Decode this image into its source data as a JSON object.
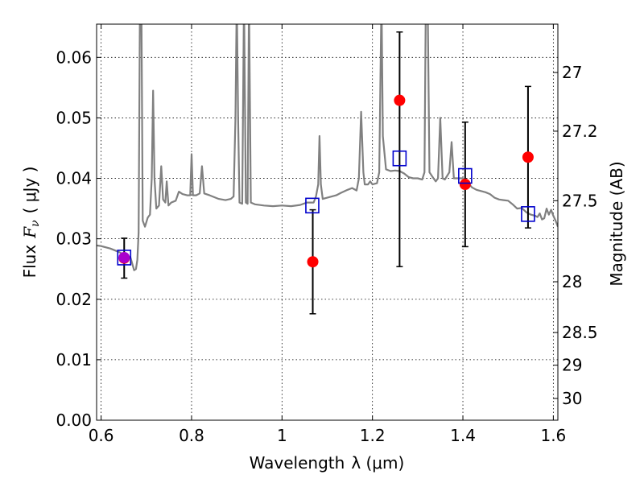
{
  "chart_data": {
    "type": "scatter",
    "xlabel": "Wavelength",
    "xlabel_symbol": "λ (μm)",
    "ylabel": "Flux",
    "ylabel_symbol": "F",
    "ylabel_subscript": "ν",
    "ylabel_unit": "( μJy )",
    "y2label": "Magnitude (AB)",
    "xlim": [
      0.59,
      1.61
    ],
    "ylim": [
      0.0,
      0.0655
    ],
    "grid": true,
    "x_ticks": [
      0.6,
      0.8,
      1.0,
      1.2,
      1.4,
      1.6
    ],
    "x_tick_labels": [
      "0.6",
      "0.8",
      "1",
      "1.2",
      "1.4",
      "1.6"
    ],
    "y_ticks": [
      0.0,
      0.01,
      0.02,
      0.03,
      0.04,
      0.05,
      0.06
    ],
    "y_tick_labels": [
      "0.00",
      "0.01",
      "0.02",
      "0.03",
      "0.04",
      "0.05",
      "0.06"
    ],
    "y2_ticks": [
      {
        "label": "27",
        "flux": 0.0575
      },
      {
        "label": "27.2",
        "flux": 0.0478
      },
      {
        "label": "27.5",
        "flux": 0.0363
      },
      {
        "label": "28",
        "flux": 0.0229
      },
      {
        "label": "28.5",
        "flux": 0.0145
      },
      {
        "label": "29",
        "flux": 0.0091
      },
      {
        "label": "30",
        "flux": 0.0036
      }
    ],
    "observed": {
      "color": "#ff0000",
      "points": [
        {
          "x": 0.651,
          "y": 0.0268,
          "yerr_lo": 0.0033,
          "yerr_hi": 0.0033
        },
        {
          "x": 1.068,
          "y": 0.0262,
          "yerr_lo": 0.0086,
          "yerr_hi": 0.0086
        },
        {
          "x": 1.26,
          "y": 0.0529,
          "yerr_lo": 0.0275,
          "yerr_hi": 0.0113
        },
        {
          "x": 1.405,
          "y": 0.039,
          "yerr_lo": 0.0103,
          "yerr_hi": 0.0103
        },
        {
          "x": 1.544,
          "y": 0.0435,
          "yerr_lo": 0.0117,
          "yerr_hi": 0.0117
        }
      ]
    },
    "model_photometry": {
      "color": "#0000cc",
      "points": [
        {
          "x": 0.651,
          "y": 0.0269
        },
        {
          "x": 1.067,
          "y": 0.0355
        },
        {
          "x": 1.26,
          "y": 0.0433
        },
        {
          "x": 1.405,
          "y": 0.0404
        },
        {
          "x": 1.544,
          "y": 0.0341
        }
      ]
    },
    "overlap_color": "#aa00cc",
    "model_spectrum": {
      "color": "#808080",
      "points": [
        [
          0.59,
          0.0289
        ],
        [
          0.6,
          0.0288
        ],
        [
          0.62,
          0.0284
        ],
        [
          0.64,
          0.0278
        ],
        [
          0.65,
          0.0274
        ],
        [
          0.655,
          0.0275
        ],
        [
          0.66,
          0.0271
        ],
        [
          0.665,
          0.0269
        ],
        [
          0.67,
          0.0256
        ],
        [
          0.673,
          0.0248
        ],
        [
          0.677,
          0.025
        ],
        [
          0.68,
          0.0265
        ],
        [
          0.683,
          0.031
        ],
        [
          0.686,
          0.07
        ],
        [
          0.689,
          0.07
        ],
        [
          0.692,
          0.033
        ],
        [
          0.697,
          0.032
        ],
        [
          0.703,
          0.0335
        ],
        [
          0.708,
          0.034
        ],
        [
          0.712,
          0.04
        ],
        [
          0.715,
          0.0545
        ],
        [
          0.718,
          0.04
        ],
        [
          0.722,
          0.035
        ],
        [
          0.728,
          0.0355
        ],
        [
          0.733,
          0.042
        ],
        [
          0.737,
          0.0365
        ],
        [
          0.742,
          0.036
        ],
        [
          0.745,
          0.0395
        ],
        [
          0.749,
          0.0355
        ],
        [
          0.755,
          0.036
        ],
        [
          0.765,
          0.0363
        ],
        [
          0.772,
          0.0378
        ],
        [
          0.78,
          0.0374
        ],
        [
          0.79,
          0.0372
        ],
        [
          0.797,
          0.0372
        ],
        [
          0.8,
          0.044
        ],
        [
          0.803,
          0.0372
        ],
        [
          0.81,
          0.0372
        ],
        [
          0.818,
          0.0375
        ],
        [
          0.823,
          0.042
        ],
        [
          0.828,
          0.0375
        ],
        [
          0.84,
          0.0372
        ],
        [
          0.86,
          0.0366
        ],
        [
          0.875,
          0.0364
        ],
        [
          0.887,
          0.0366
        ],
        [
          0.893,
          0.037
        ],
        [
          0.897,
          0.05
        ],
        [
          0.9,
          0.07
        ],
        [
          0.903,
          0.05
        ],
        [
          0.906,
          0.036
        ],
        [
          0.912,
          0.0358
        ],
        [
          0.916,
          0.07
        ],
        [
          0.92,
          0.036
        ],
        [
          0.924,
          0.0358
        ],
        [
          0.927,
          0.07
        ],
        [
          0.931,
          0.036
        ],
        [
          0.94,
          0.0357
        ],
        [
          0.96,
          0.0355
        ],
        [
          0.98,
          0.0354
        ],
        [
          1.0,
          0.0355
        ],
        [
          1.02,
          0.0354
        ],
        [
          1.04,
          0.0356
        ],
        [
          1.055,
          0.036
        ],
        [
          1.07,
          0.036
        ],
        [
          1.075,
          0.037
        ],
        [
          1.08,
          0.039
        ],
        [
          1.083,
          0.047
        ],
        [
          1.086,
          0.039
        ],
        [
          1.09,
          0.0366
        ],
        [
          1.1,
          0.0368
        ],
        [
          1.12,
          0.0372
        ],
        [
          1.13,
          0.0376
        ],
        [
          1.145,
          0.0381
        ],
        [
          1.155,
          0.0384
        ],
        [
          1.165,
          0.038
        ],
        [
          1.17,
          0.04
        ],
        [
          1.175,
          0.051
        ],
        [
          1.18,
          0.041
        ],
        [
          1.183,
          0.039
        ],
        [
          1.19,
          0.039
        ],
        [
          1.195,
          0.0395
        ],
        [
          1.2,
          0.039
        ],
        [
          1.21,
          0.0392
        ],
        [
          1.215,
          0.041
        ],
        [
          1.22,
          0.07
        ],
        [
          1.223,
          0.047
        ],
        [
          1.23,
          0.0415
        ],
        [
          1.24,
          0.0412
        ],
        [
          1.25,
          0.0413
        ],
        [
          1.26,
          0.0412
        ],
        [
          1.27,
          0.0408
        ],
        [
          1.28,
          0.0402
        ],
        [
          1.29,
          0.04
        ],
        [
          1.3,
          0.04
        ],
        [
          1.31,
          0.0398
        ],
        [
          1.315,
          0.041
        ],
        [
          1.318,
          0.07
        ],
        [
          1.322,
          0.07
        ],
        [
          1.326,
          0.041
        ],
        [
          1.335,
          0.04
        ],
        [
          1.34,
          0.0395
        ],
        [
          1.345,
          0.04
        ],
        [
          1.35,
          0.05
        ],
        [
          1.355,
          0.04
        ],
        [
          1.36,
          0.0398
        ],
        [
          1.37,
          0.041
        ],
        [
          1.375,
          0.046
        ],
        [
          1.38,
          0.04
        ],
        [
          1.39,
          0.04
        ],
        [
          1.4,
          0.04
        ],
        [
          1.41,
          0.0393
        ],
        [
          1.42,
          0.0385
        ],
        [
          1.43,
          0.0381
        ],
        [
          1.44,
          0.0379
        ],
        [
          1.45,
          0.0377
        ],
        [
          1.46,
          0.0374
        ],
        [
          1.47,
          0.0368
        ],
        [
          1.48,
          0.0365
        ],
        [
          1.49,
          0.0364
        ],
        [
          1.5,
          0.0363
        ],
        [
          1.51,
          0.0357
        ],
        [
          1.52,
          0.035
        ],
        [
          1.53,
          0.0351
        ],
        [
          1.54,
          0.0344
        ],
        [
          1.55,
          0.034
        ],
        [
          1.56,
          0.0338
        ],
        [
          1.565,
          0.0336
        ],
        [
          1.57,
          0.0342
        ],
        [
          1.575,
          0.0332
        ],
        [
          1.58,
          0.0334
        ],
        [
          1.585,
          0.035
        ],
        [
          1.59,
          0.034
        ],
        [
          1.595,
          0.0348
        ],
        [
          1.6,
          0.0338
        ],
        [
          1.605,
          0.033
        ],
        [
          1.61,
          0.032
        ]
      ]
    }
  }
}
